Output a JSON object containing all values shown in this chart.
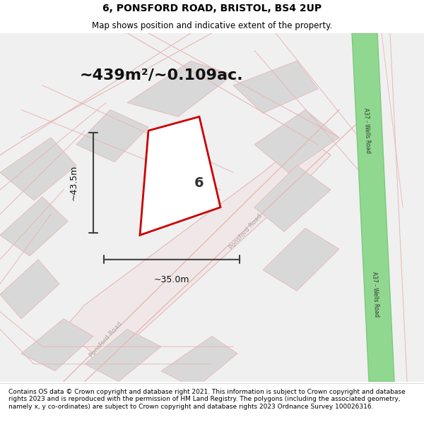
{
  "title": "6, PONSFORD ROAD, BRISTOL, BS4 2UP",
  "subtitle": "Map shows position and indicative extent of the property.",
  "footer": "Contains OS data © Crown copyright and database right 2021. This information is subject to Crown copyright and database rights 2023 and is reproduced with the permission of HM Land Registry. The polygons (including the associated geometry, namely x, y co-ordinates) are subject to Crown copyright and database rights 2023 Ordnance Survey 100026316.",
  "area_label": "~439m²/~0.109ac.",
  "width_label": "~35.0m",
  "height_label": "~43.5m",
  "number_label": "6",
  "bg_color": "#f5f5f5",
  "map_bg": "#f0f0f0",
  "road_color": "#e8b8b8",
  "road_fill": "#f8f8f8",
  "plot_outline_color": "#cc0000",
  "plot_fill_color": "#ffffff",
  "green_road_color": "#7dc97d",
  "green_road_fill": "#90d890",
  "block_fill": "#d8d8d8",
  "road_label_color": "#888888",
  "dim_line_color": "#404040"
}
